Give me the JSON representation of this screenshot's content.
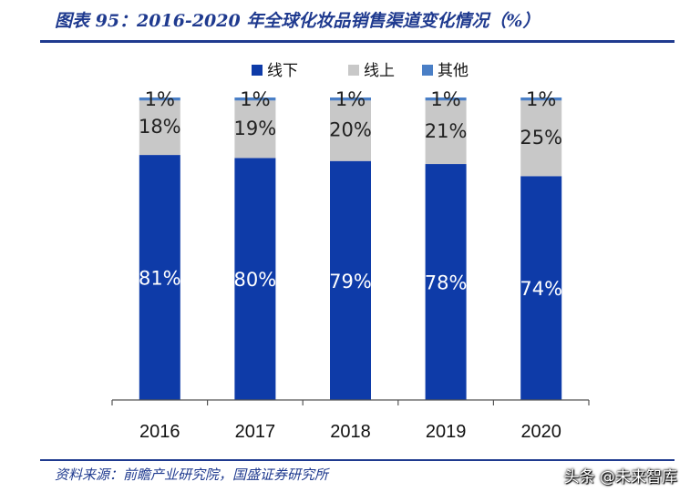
{
  "title": "图表 95：2016-2020 年全球化妆品销售渠道变化情况（%）",
  "source": "资料来源：前瞻产业研究院，国盛证券研究所",
  "watermark": "头条 @未来智库",
  "colors": {
    "offline": "#0e3ba8",
    "online": "#c8c8c8",
    "other": "#4a7fc6",
    "title": "#1f3a8f"
  },
  "chart_data": {
    "type": "bar",
    "stacked": true,
    "title": "",
    "xlabel": "",
    "ylabel": "",
    "ylim": [
      0,
      100
    ],
    "grid": false,
    "legend_position": "top-right",
    "categories": [
      "2016",
      "2017",
      "2018",
      "2019",
      "2020"
    ],
    "series": [
      {
        "name": "线下",
        "values": [
          81,
          80,
          79,
          78,
          74
        ],
        "labels": [
          "81%",
          "80%",
          "79%",
          "78%",
          "74%"
        ]
      },
      {
        "name": "线上",
        "values": [
          18,
          19,
          20,
          21,
          25
        ],
        "labels": [
          "18%",
          "19%",
          "20%",
          "21%",
          "25%"
        ]
      },
      {
        "name": "其他",
        "values": [
          1,
          1,
          1,
          1,
          1
        ],
        "labels": [
          "1%",
          "1%",
          "1%",
          "1%",
          "1%"
        ]
      }
    ]
  }
}
